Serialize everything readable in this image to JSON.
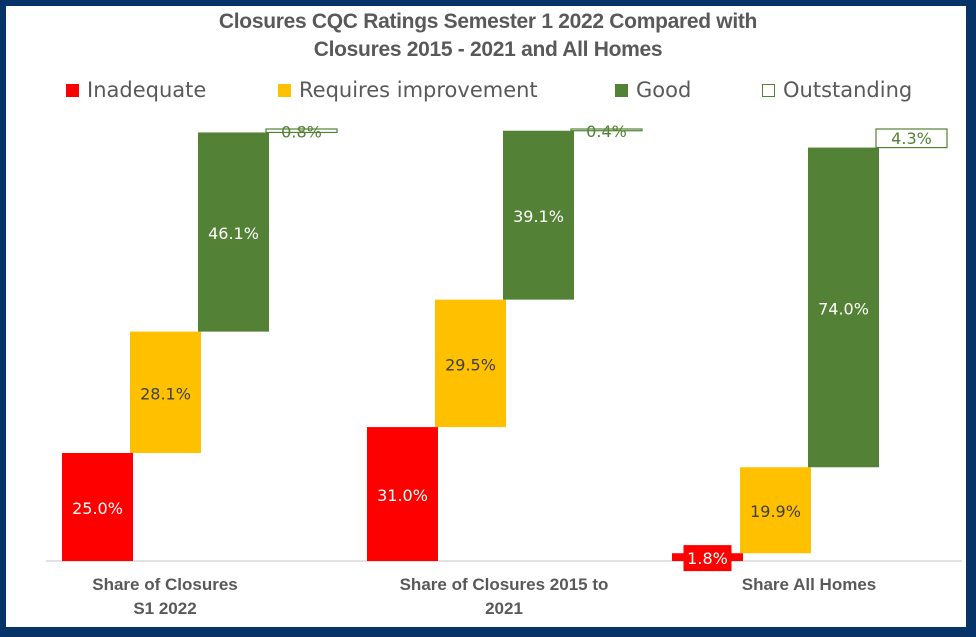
{
  "chart_data": {
    "type": "bar",
    "subtype": "stacked-waterfall",
    "title": "Closures CQC Ratings Semester 1 2022 Compared with Closures 2015 - 2021 and All Homes",
    "title_lines": [
      "Closures CQC Ratings Semester 1 2022 Compared with",
      "Closures 2015 - 2021 and All Homes"
    ],
    "xlabel": "",
    "ylabel": "",
    "ylim": [
      0,
      100
    ],
    "grid": false,
    "legend_position": "top",
    "categories": [
      "Share of Closures S1 2022",
      "Share of Closures 2015 to 2021",
      "Share All Homes"
    ],
    "category_label_lines": [
      [
        "Share of Closures",
        "S1 2022"
      ],
      [
        "Share of Closures 2015 to",
        "2021"
      ],
      [
        "Share All Homes"
      ]
    ],
    "series": [
      {
        "name": "Inadequate",
        "color": "#FF0000",
        "label_color": "#FFFFFF",
        "values": [
          25.0,
          31.0,
          1.8
        ],
        "labels": [
          "25.0%",
          "31.0%",
          "1.8%"
        ]
      },
      {
        "name": "Requires improvement",
        "color": "#FFC000",
        "label_color": "#404040",
        "values": [
          28.1,
          29.5,
          19.9
        ],
        "labels": [
          "28.1%",
          "29.5%",
          "19.9%"
        ]
      },
      {
        "name": "Good",
        "color": "#538135",
        "label_color": "#FFFFFF",
        "values": [
          46.1,
          39.1,
          74.0
        ],
        "labels": [
          "46.1%",
          "39.1%",
          "74.0%"
        ]
      },
      {
        "name": "Outstanding",
        "color": "#FFFFFF",
        "border_color": "#538135",
        "label_color": "#538135",
        "values": [
          0.8,
          0.4,
          4.3
        ],
        "labels": [
          "0.8%",
          "0.4%",
          "4.3%"
        ]
      }
    ]
  },
  "legend": {
    "items": [
      {
        "label": "Inadequate",
        "color": "#FF0000"
      },
      {
        "label": "Requires improvement",
        "color": "#FFC000"
      },
      {
        "label": "Good",
        "color": "#538135"
      },
      {
        "label": "Outstanding",
        "color": "#FFFFFF",
        "border": "#538135"
      }
    ]
  }
}
